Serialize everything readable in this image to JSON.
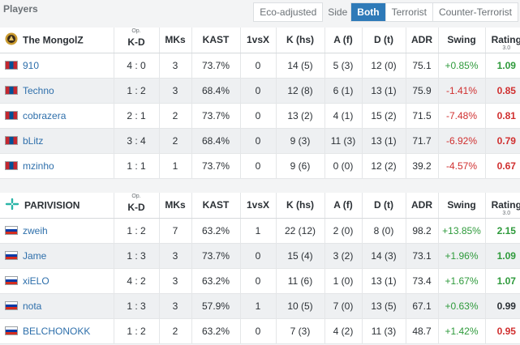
{
  "header": {
    "title": "Players"
  },
  "filters": {
    "eco_label": "Eco-adjusted",
    "side_label": "Side",
    "options": [
      "Both",
      "Terrorist",
      "Counter-Terrorist"
    ],
    "active": "Both"
  },
  "columns": {
    "kd_op": "Op.",
    "kd": "K-D",
    "mks": "MKs",
    "kast": "KAST",
    "vsx": "1vsX",
    "khs": "K (hs)",
    "af": "A (f)",
    "dt": "D (t)",
    "adr": "ADR",
    "swing": "Swing",
    "rating": "Rating",
    "rating_version": "3.0"
  },
  "teams": [
    {
      "name": "The MongolZ",
      "logo_icon": "mongolz-logo-icon",
      "players": [
        {
          "flag": "mn",
          "name": "910",
          "kd": "4 : 0",
          "mks": "3",
          "kast": "73.7%",
          "vsx": "0",
          "khs": "14 (5)",
          "af": "5 (3)",
          "dt": "12 (0)",
          "adr": "75.1",
          "swing": "+0.85%",
          "rating": "1.09"
        },
        {
          "flag": "mn",
          "name": "Techno",
          "kd": "1 : 2",
          "mks": "3",
          "kast": "68.4%",
          "vsx": "0",
          "khs": "12 (8)",
          "af": "6 (1)",
          "dt": "13 (1)",
          "adr": "75.9",
          "swing": "-1.41%",
          "rating": "0.85"
        },
        {
          "flag": "mn",
          "name": "cobrazera",
          "kd": "2 : 1",
          "mks": "2",
          "kast": "73.7%",
          "vsx": "0",
          "khs": "13 (2)",
          "af": "4 (1)",
          "dt": "15 (2)",
          "adr": "71.5",
          "swing": "-7.48%",
          "rating": "0.81"
        },
        {
          "flag": "mn",
          "name": "bLitz",
          "kd": "3 : 4",
          "mks": "2",
          "kast": "68.4%",
          "vsx": "0",
          "khs": "9 (3)",
          "af": "11 (3)",
          "dt": "13 (1)",
          "adr": "71.7",
          "swing": "-6.92%",
          "rating": "0.79"
        },
        {
          "flag": "mn",
          "name": "mzinho",
          "kd": "1 : 1",
          "mks": "1",
          "kast": "73.7%",
          "vsx": "0",
          "khs": "9 (6)",
          "af": "0 (0)",
          "dt": "12 (2)",
          "adr": "39.2",
          "swing": "-4.57%",
          "rating": "0.67"
        }
      ]
    },
    {
      "name": "PARIVISION",
      "logo_icon": "parivision-logo-icon",
      "players": [
        {
          "flag": "ru",
          "name": "zweih",
          "kd": "1 : 2",
          "mks": "7",
          "kast": "63.2%",
          "vsx": "1",
          "khs": "22 (12)",
          "af": "2 (0)",
          "dt": "8 (0)",
          "adr": "98.2",
          "swing": "+13.85%",
          "rating": "2.15"
        },
        {
          "flag": "ru",
          "name": "Jame",
          "kd": "1 : 3",
          "mks": "3",
          "kast": "73.7%",
          "vsx": "0",
          "khs": "15 (4)",
          "af": "3 (2)",
          "dt": "14 (3)",
          "adr": "73.1",
          "swing": "+1.96%",
          "rating": "1.09"
        },
        {
          "flag": "ru",
          "name": "xiELO",
          "kd": "4 : 2",
          "mks": "3",
          "kast": "63.2%",
          "vsx": "0",
          "khs": "11 (6)",
          "af": "1 (0)",
          "dt": "13 (1)",
          "adr": "73.4",
          "swing": "+1.67%",
          "rating": "1.07"
        },
        {
          "flag": "ru",
          "name": "nota",
          "kd": "1 : 3",
          "mks": "3",
          "kast": "57.9%",
          "vsx": "1",
          "khs": "10 (5)",
          "af": "7 (0)",
          "dt": "13 (5)",
          "adr": "67.1",
          "swing": "+0.63%",
          "rating": "0.99"
        },
        {
          "flag": "ru",
          "name": "BELCHONOKK",
          "kd": "1 : 2",
          "mks": "2",
          "kast": "63.2%",
          "vsx": "0",
          "khs": "7 (3)",
          "af": "4 (2)",
          "dt": "11 (3)",
          "adr": "48.7",
          "swing": "+1.42%",
          "rating": "0.95"
        }
      ]
    }
  ],
  "colors": {
    "accent": "#2e7ab8",
    "positive": "#2e9a3b",
    "negative": "#d02f2f",
    "link": "#2e6fab"
  }
}
